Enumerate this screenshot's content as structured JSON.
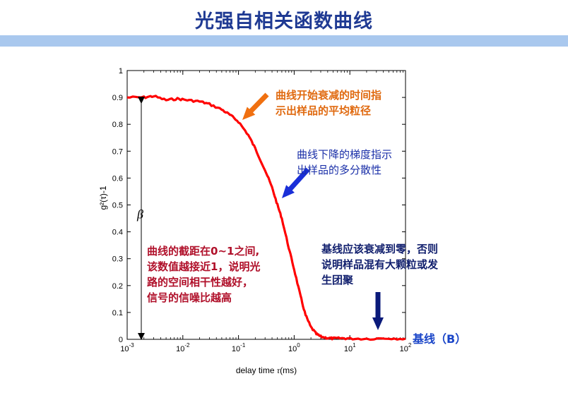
{
  "title": "光强自相关函数曲线",
  "chart_data": {
    "type": "line",
    "xlabel_prefix": "delay time ",
    "xlabel_tau": "τ",
    "xlabel_suffix": "(ms)",
    "ylabel": "g²(τ)-1",
    "x_scale": "log",
    "xlim": [
      0.001,
      100
    ],
    "ylim": [
      0,
      1
    ],
    "x_ticks": [
      {
        "base": "10",
        "exp": "-3",
        "value": 0.001
      },
      {
        "base": "10",
        "exp": "-2",
        "value": 0.01
      },
      {
        "base": "10",
        "exp": "-1",
        "value": 0.1
      },
      {
        "base": "10",
        "exp": "0",
        "value": 1
      },
      {
        "base": "10",
        "exp": "1",
        "value": 10
      },
      {
        "base": "10",
        "exp": "2",
        "value": 100
      }
    ],
    "y_ticks": [
      "0",
      "0.1",
      "0.2",
      "0.3",
      "0.4",
      "0.5",
      "0.6",
      "0.7",
      "0.8",
      "0.9",
      "1"
    ],
    "series": [
      {
        "color": "#ff0000",
        "x": [
          0.001,
          0.002,
          0.003,
          0.005,
          0.008,
          0.012,
          0.02,
          0.03,
          0.05,
          0.07,
          0.1,
          0.15,
          0.2,
          0.3,
          0.4,
          0.5,
          0.6,
          0.8,
          1.0,
          1.3,
          1.6,
          2.0,
          2.5,
          3.0,
          4.0,
          5.0,
          7.0,
          10,
          20,
          50,
          100
        ],
        "y": [
          0.9,
          0.9,
          0.905,
          0.89,
          0.895,
          0.89,
          0.885,
          0.875,
          0.855,
          0.835,
          0.81,
          0.76,
          0.71,
          0.63,
          0.565,
          0.5,
          0.45,
          0.34,
          0.26,
          0.16,
          0.09,
          0.045,
          0.02,
          0.01,
          0.005,
          0.003,
          0.004,
          0.003,
          0.002,
          0.004,
          0.002
        ]
      }
    ],
    "beta_label": "β",
    "grid": false
  },
  "annotations": {
    "orange": [
      "曲线开始衰减的时间指",
      "示出样品的平均粒径"
    ],
    "blue": [
      "曲线下降的梯度指示",
      "出样品的多分散性"
    ],
    "red": [
      "曲线的截距在0~1之间,",
      "该数值越接近1，说明光",
      "路的空间相干性越好，",
      "信号的信噪比越高"
    ],
    "navy": [
      "基线应该衰减到零，否则",
      "说明样品混有大颗粒或发",
      "生团聚"
    ],
    "baseline": "基线（B）"
  },
  "colors": {
    "curve": "#ff0000",
    "arrow_orange": "#f07010",
    "arrow_blue": "#1a2fd8",
    "arrow_navy": "#0a1a7a"
  }
}
